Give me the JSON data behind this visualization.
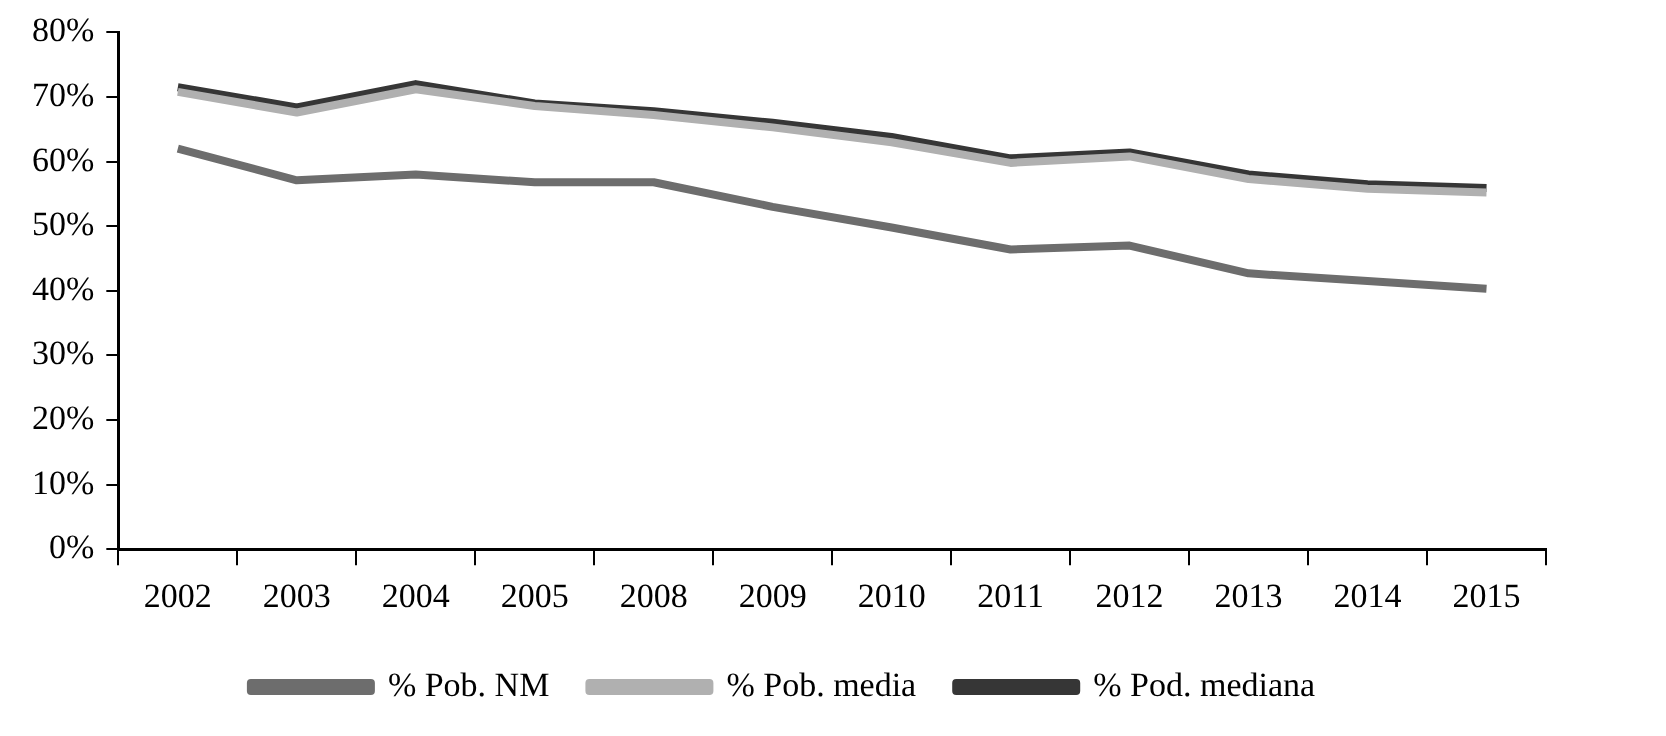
{
  "chart_data": {
    "type": "line",
    "categories": [
      "2002",
      "2003",
      "2004",
      "2005",
      "2008",
      "2009",
      "2010",
      "2011",
      "2012",
      "2013",
      "2014",
      "2015"
    ],
    "series": [
      {
        "name": "% Pob. NM",
        "color": "#6d6d6d",
        "values": [
          62,
          57.1,
          58,
          56.8,
          56.8,
          53,
          49.8,
          46.4,
          47,
          42.7,
          41.5,
          40.3
        ]
      },
      {
        "name": "% Pob. media",
        "color": "#b0b0b0",
        "values": [
          70.8,
          67.6,
          71.2,
          68.6,
          67.2,
          65.3,
          63,
          59.8,
          60.8,
          57.3,
          55.8,
          55.2
        ]
      },
      {
        "name": "% Pod. mediana",
        "color": "#363636",
        "values": [
          71.5,
          68.4,
          72,
          69,
          67.8,
          66,
          63.8,
          60.5,
          61.4,
          58,
          56.5,
          55.9
        ]
      }
    ],
    "ylim": [
      0,
      80
    ],
    "yticks": [
      {
        "value": 0,
        "label": "0%"
      },
      {
        "value": 10,
        "label": "10%"
      },
      {
        "value": 20,
        "label": "20%"
      },
      {
        "value": 30,
        "label": "30%"
      },
      {
        "value": 40,
        "label": "40%"
      },
      {
        "value": 50,
        "label": "50%"
      },
      {
        "value": 60,
        "label": "60%"
      },
      {
        "value": 70,
        "label": "70%"
      },
      {
        "value": 80,
        "label": "80%"
      }
    ],
    "grid": false,
    "legend": "bottom",
    "marker": "none",
    "line_style": "solid"
  }
}
